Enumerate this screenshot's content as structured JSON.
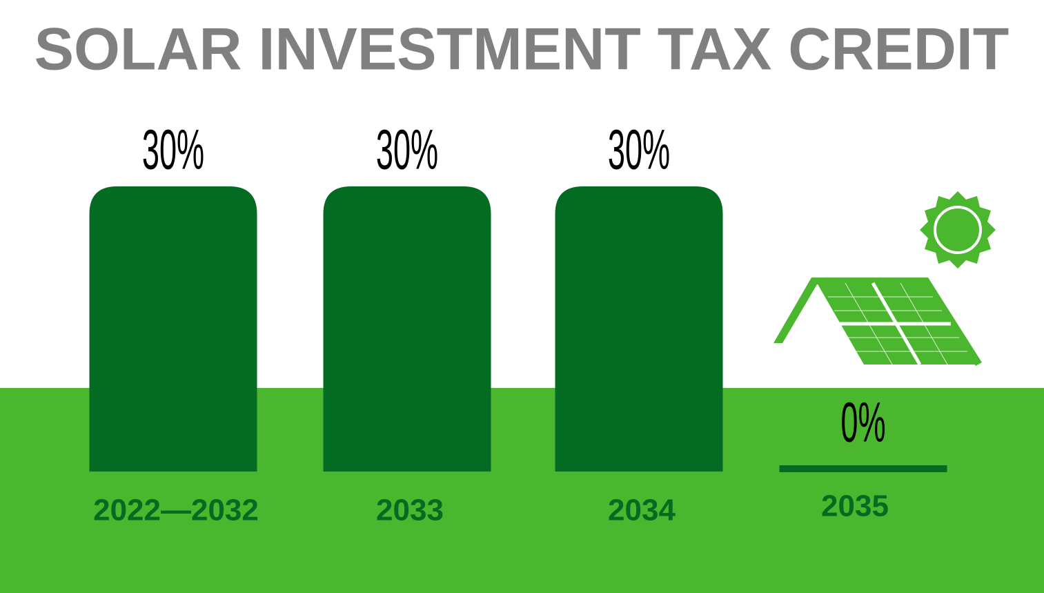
{
  "chart_data": {
    "type": "bar",
    "title": "SOLAR INVESTMENT TAX CREDIT",
    "categories": [
      "2022—2032",
      "2033",
      "2034",
      "2035"
    ],
    "values": [
      30,
      30,
      30,
      0
    ],
    "value_labels": [
      "30%",
      "30%",
      "30%",
      "0%"
    ],
    "color": "#036b22"
  }
}
